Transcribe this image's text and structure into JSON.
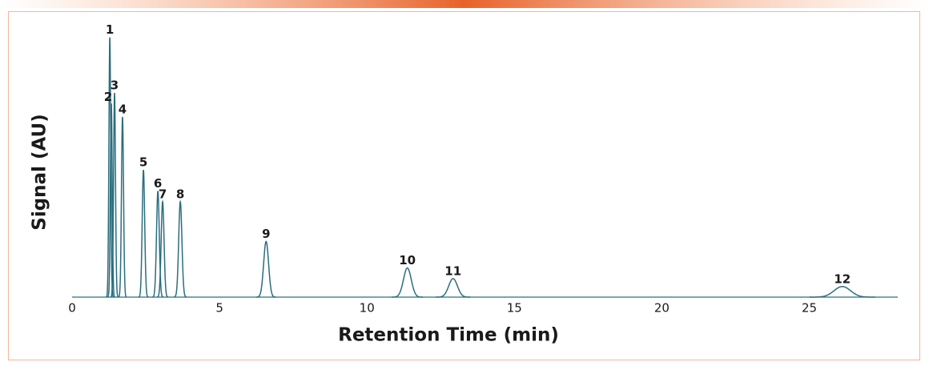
{
  "chart_data": {
    "type": "chromatogram",
    "x_label": "Retention Time (min)",
    "y_label": "Signal (AU)",
    "xlim": [
      0,
      28
    ],
    "xticks": [
      0,
      5,
      10,
      15,
      20,
      25
    ],
    "ylim": [
      0,
      100
    ],
    "color": "#2b6e7e",
    "peak_labels": [
      "1",
      "2",
      "3",
      "4",
      "5",
      "6",
      "7",
      "8",
      "9",
      "10",
      "11",
      "12"
    ],
    "x": [
      1.28,
      1.33,
      1.44,
      1.71,
      2.42,
      2.91,
      3.07,
      3.67,
      6.58,
      11.37,
      12.92,
      26.12
    ],
    "values": [
      98,
      73,
      77,
      68,
      48,
      40,
      36,
      36,
      21,
      11,
      7,
      4
    ]
  }
}
